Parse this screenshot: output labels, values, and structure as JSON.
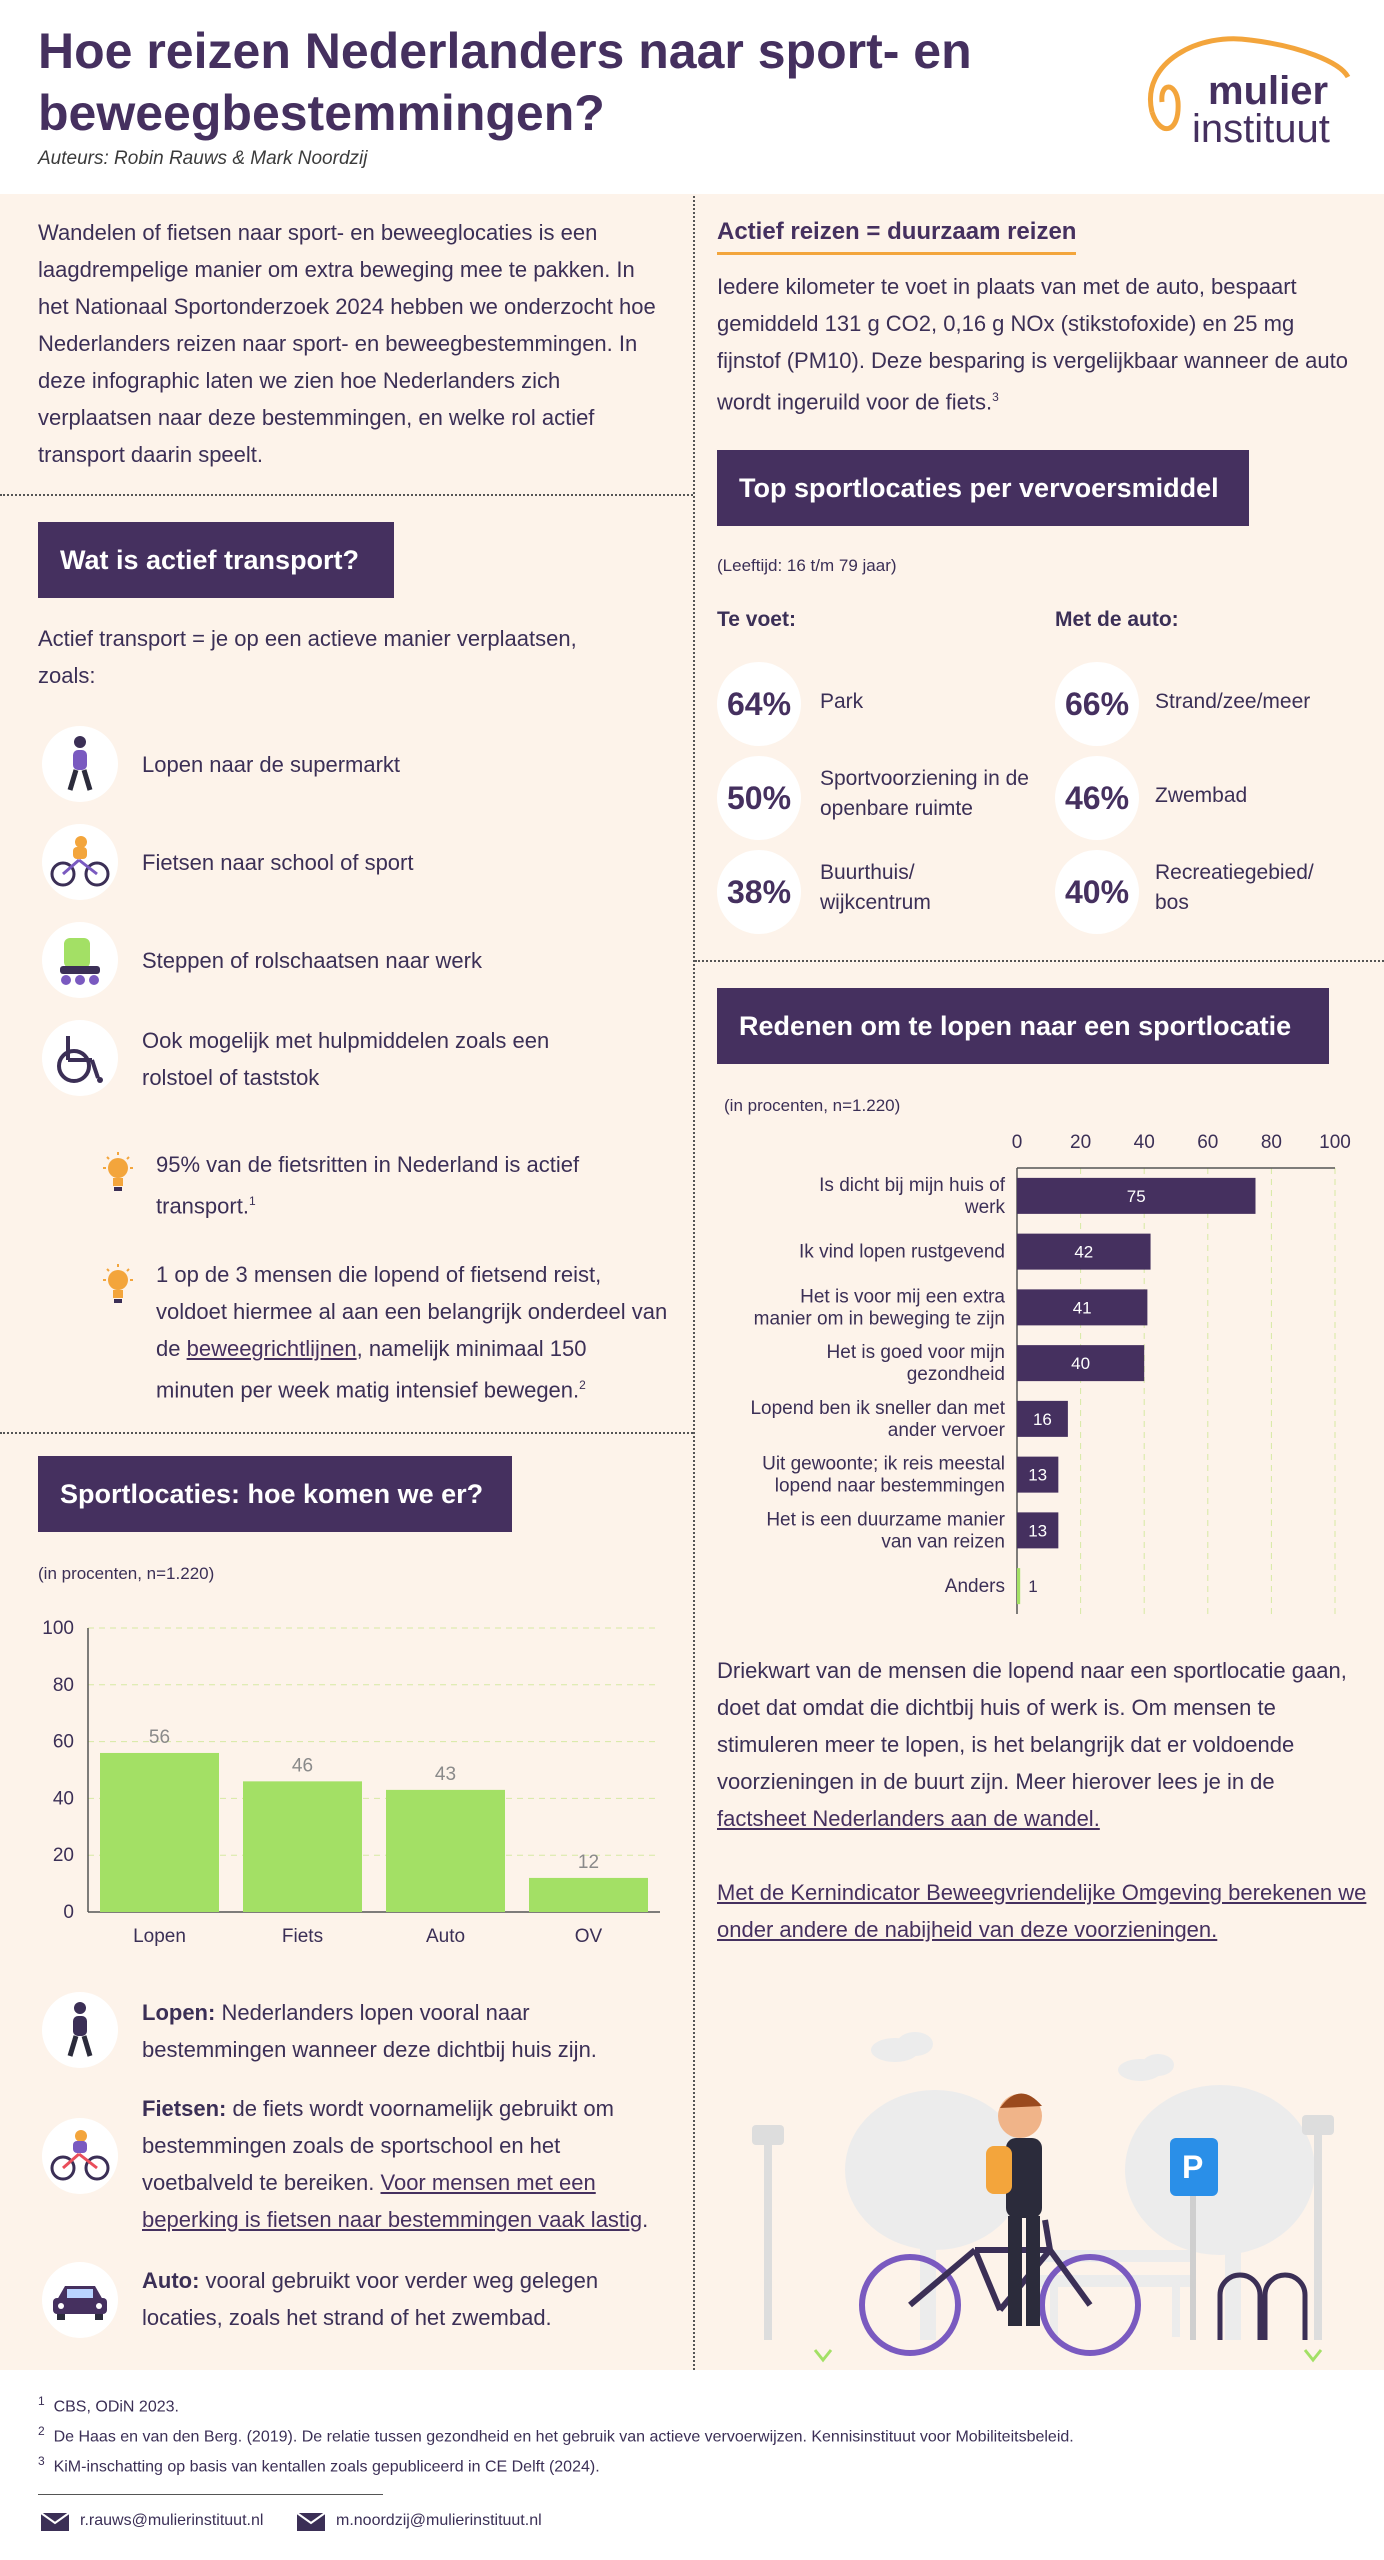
{
  "header": {
    "title": "Hoe reizen Nederlanders naar sport- en beweegbestemmingen?",
    "authors": "Auteurs: Robin Rauws & Mark Noordzij",
    "logo_line1": "mulier",
    "logo_line2": "instituut"
  },
  "intro": "Wandelen of fietsen naar sport- en beweeglocaties is een laagdrempelige manier om extra beweging mee te pakken. In het Nationaal Sportonderzoek 2024 hebben we onderzocht hoe Nederlanders reizen naar sport- en beweegbestemmingen. In deze infographic laten we zien hoe Nederlanders zich verplaatsen naar deze bestemmingen, en welke rol actief transport daarin speelt.",
  "active_transport": {
    "heading": "Wat is actief transport?",
    "definition": "Actief transport = je op een actieve manier verplaatsen, zoals:",
    "items": [
      {
        "icon": "walking-person-icon",
        "label": "Lopen naar de supermarkt"
      },
      {
        "icon": "cyclist-icon",
        "label": "Fietsen naar school of sport"
      },
      {
        "icon": "rollerskate-icon",
        "label": "Steppen of rolschaatsen naar werk"
      },
      {
        "icon": "wheelchair-icon",
        "label": "Ook mogelijk met hulpmiddelen zoals een rolstoel of taststok"
      }
    ],
    "fact1": "95% van de fietsritten in Nederland is actief transport.",
    "fact1_sup": "1",
    "fact2_a": "1 op de 3 mensen die lopend of fietsend reist, voldoet hiermee al aan een belangrijk onderdeel van de ",
    "fact2_link": "beweegrichtlijnen",
    "fact2_b": ", namelijk minimaal 150 minuten per week matig intensief bewegen.",
    "fact2_sup": "2"
  },
  "sportlocaties": {
    "heading": "Sportlocaties: hoe komen we er?",
    "note": "(in procenten, n=1.220)",
    "descriptions": [
      {
        "icon": "walking-person-icon",
        "bold": "Lopen:",
        "text": " Nederlanders lopen vooral naar bestemmingen wanneer deze dichtbij huis zijn.",
        "link": ""
      },
      {
        "icon": "cyclist-icon",
        "bold": "Fietsen:",
        "text": " de fiets wordt voornamelijk gebruikt om bestemmingen zoals de sportschool en het voetbalveld te bereiken. ",
        "link": "Voor mensen met een beperking is fietsen naar bestemmingen vaak lastig"
      },
      {
        "icon": "car-icon",
        "bold": "Auto:",
        "text": " vooral gebruikt voor verder weg gelegen locaties, zoals het strand of het zwembad.",
        "link": ""
      }
    ]
  },
  "duurzaam": {
    "heading": "Actief reizen = duurzaam reizen",
    "text": "Iedere kilometer te voet in plaats van met de auto, bespaart gemiddeld 131 g CO2, 0,16 g NOx (stikstofoxide) en 25 mg fijnstof (PM10). Deze besparing is vergelijkbaar wanneer de auto wordt ingeruild voor de fiets.",
    "sup": "3"
  },
  "top": {
    "heading": "Top sportlocaties per vervoersmiddel",
    "note": "(Leeftijd: 16 t/m 79 jaar)",
    "col1_title": "Te voet:",
    "col2_title": "Met de auto:",
    "col1": [
      {
        "pct": "64%",
        "label": "Park"
      },
      {
        "pct": "50%",
        "label": "Sportvoorziening in de openbare ruimte"
      },
      {
        "pct": "38%",
        "label": "Buurthuis/ wijkcentrum"
      }
    ],
    "col2": [
      {
        "pct": "66%",
        "label": "Strand/zee/meer"
      },
      {
        "pct": "46%",
        "label": "Zwembad"
      },
      {
        "pct": "40%",
        "label": "Recreatiegebied/ bos"
      }
    ]
  },
  "redenen": {
    "heading": "Redenen om te lopen naar een sportlocatie",
    "note": "(in procenten, n=1.220)",
    "conclusion": "Driekwart van de mensen die lopend naar een sportlocatie gaan, doet dat omdat die dichtbij huis of werk is. Om mensen te stimuleren meer te lopen, is het belangrijk dat er voldoende voorzieningen in de buurt zijn. Meer hierover lees je in de ",
    "conclusion_link": "factsheet Nederlanders aan de wandel.",
    "kern_link": "Met de Kernindicator Beweegvriendelijke Omgeving berekenen we onder andere de nabijheid van deze voorzieningen."
  },
  "chart_data": [
    {
      "type": "bar",
      "categories": [
        "Lopen",
        "Fiets",
        "Auto",
        "OV"
      ],
      "values": [
        56,
        46,
        43,
        12
      ],
      "ylim": [
        0,
        100
      ],
      "yticks": [
        0,
        20,
        40,
        60,
        80,
        100
      ],
      "bar_color": "#a3e065",
      "grid": true
    },
    {
      "type": "bar",
      "orientation": "horizontal",
      "categories": [
        "Is dicht bij mijn huis of werk",
        "Ik vind lopen rustgevend",
        "Het is voor mij een extra manier om in beweging te zijn",
        "Het is goed voor mijn gezondheid",
        "Lopend ben ik sneller dan met ander vervoer",
        "Uit gewoonte; ik reis meestal lopend naar bestemmingen",
        "Het is een duurzame manier van van reizen",
        "Anders"
      ],
      "values": [
        75,
        42,
        41,
        40,
        16,
        13,
        13,
        1
      ],
      "xlim": [
        0,
        100
      ],
      "xticks": [
        0,
        20,
        40,
        60,
        80,
        100
      ],
      "bar_color": "#45305f",
      "highlight_color": "#a3e065",
      "grid": true
    }
  ],
  "footer": {
    "notes": [
      {
        "num": "1",
        "text": "CBS, ODiN 2023."
      },
      {
        "num": "2",
        "text": "De Haas en van den Berg. (2019). De relatie tussen gezondheid en het gebruik van actieve vervoerwijzen. Kennisinstituut voor Mobiliteitsbeleid."
      },
      {
        "num": "3",
        "text": "KiM-inschatting op basis van kentallen zoals gepubliceerd in CE Delft (2024)."
      }
    ],
    "email1": "r.rauws@mulierinstituut.nl",
    "email2": "m.noordzij@mulierinstituut.nl"
  },
  "colors": {
    "purple": "#45305f",
    "orange": "#f3a53c",
    "green": "#a3e065",
    "background": "#fdf3ea"
  }
}
